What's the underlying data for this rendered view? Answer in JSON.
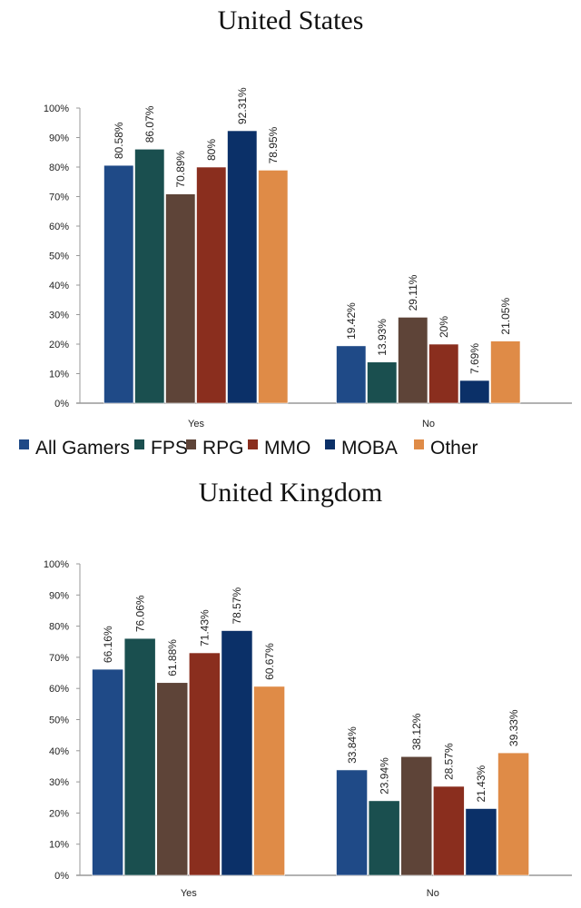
{
  "chart_data": [
    {
      "type": "bar",
      "title": "United States",
      "categories": [
        "Yes",
        "No"
      ],
      "ylim": [
        0,
        100
      ],
      "yticks": [
        "0%",
        "10%",
        "20%",
        "30%",
        "40%",
        "50%",
        "60%",
        "70%",
        "80%",
        "90%",
        "100%"
      ],
      "grid": false,
      "series": [
        {
          "name": "All Gamers",
          "values": [
            80.58,
            19.42
          ],
          "labels": [
            "80.58%",
            "19.42%"
          ],
          "color": "#1f4a87"
        },
        {
          "name": "FPS",
          "values": [
            86.07,
            13.93
          ],
          "labels": [
            "86.07%",
            "13.93%"
          ],
          "color": "#1a4f4f"
        },
        {
          "name": "RPG",
          "values": [
            70.89,
            29.11
          ],
          "labels": [
            "70.89%",
            "29.11%"
          ],
          "color": "#5e4438"
        },
        {
          "name": "MMO",
          "values": [
            80,
            20
          ],
          "labels": [
            "80%",
            "20%"
          ],
          "color": "#8a2e1e"
        },
        {
          "name": "MOBA",
          "values": [
            92.31,
            7.69
          ],
          "labels": [
            "92.31%",
            "7.69%"
          ],
          "color": "#0b3068"
        },
        {
          "name": "Other",
          "values": [
            78.95,
            21.05
          ],
          "labels": [
            "78.95%",
            "21.05%"
          ],
          "color": "#df8b47"
        }
      ],
      "legend": "bottom"
    },
    {
      "type": "bar",
      "title": "United Kingdom",
      "categories": [
        "Yes",
        "No"
      ],
      "ylim": [
        0,
        100
      ],
      "yticks": [
        "0%",
        "10%",
        "20%",
        "30%",
        "40%",
        "50%",
        "60%",
        "70%",
        "80%",
        "90%",
        "100%"
      ],
      "grid": false,
      "series": [
        {
          "name": "All Gamers",
          "values": [
            66.16,
            33.84
          ],
          "labels": [
            "66.16%",
            "33.84%"
          ],
          "color": "#1f4a87"
        },
        {
          "name": "FPS",
          "values": [
            76.06,
            23.94
          ],
          "labels": [
            "76.06%",
            "23.94%"
          ],
          "color": "#1a4f4f"
        },
        {
          "name": "RPG",
          "values": [
            61.88,
            38.12
          ],
          "labels": [
            "61.88%",
            "38.12%"
          ],
          "color": "#5e4438"
        },
        {
          "name": "MMO",
          "values": [
            71.43,
            28.57
          ],
          "labels": [
            "71.43%",
            "28.57%"
          ],
          "color": "#8a2e1e"
        },
        {
          "name": "MOBA",
          "values": [
            78.57,
            21.43
          ],
          "labels": [
            "78.57%",
            "21.43%"
          ],
          "color": "#0b3068"
        },
        {
          "name": "Other",
          "values": [
            60.67,
            39.33
          ],
          "labels": [
            "60.67%",
            "39.33%"
          ],
          "color": "#df8b47"
        }
      ]
    }
  ]
}
